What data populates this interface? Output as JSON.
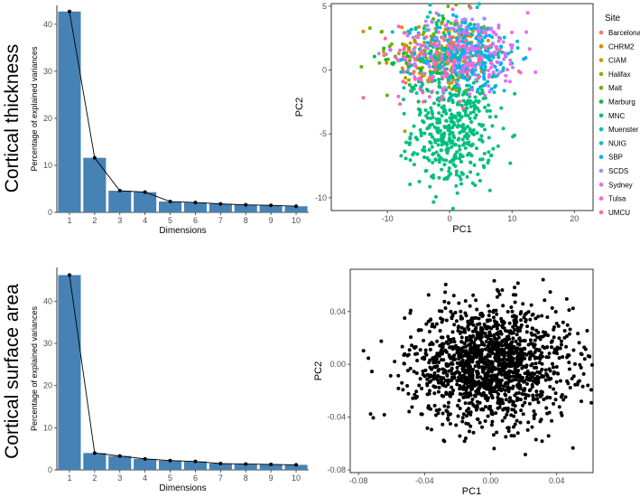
{
  "row_titles": [
    "Cortical thickness",
    "Cortical surface area"
  ],
  "legend": {
    "title": "Site",
    "items": [
      {
        "label": "Barcelona",
        "color": "#F8766D"
      },
      {
        "label": "CHRM2",
        "color": "#E58700"
      },
      {
        "label": "CIAM",
        "color": "#C99800"
      },
      {
        "label": "Halifax",
        "color": "#A3A500"
      },
      {
        "label": "Malt",
        "color": "#6BB100"
      },
      {
        "label": "Marburg",
        "color": "#00BA38"
      },
      {
        "label": "MNC",
        "color": "#00BF7D"
      },
      {
        "label": "Muenster",
        "color": "#00C0AF"
      },
      {
        "label": "NUIG",
        "color": "#00BCD8"
      },
      {
        "label": "SBP",
        "color": "#00B0F6"
      },
      {
        "label": "SCDS",
        "color": "#B983FF"
      },
      {
        "label": "Sydney",
        "color": "#E76BF3"
      },
      {
        "label": "Tulsa",
        "color": "#FD61D1"
      },
      {
        "label": "UMCU",
        "color": "#FF67A4"
      }
    ]
  },
  "chart_data": [
    {
      "type": "bar",
      "categories": [
        "1",
        "2",
        "3",
        "4",
        "5",
        "6",
        "7",
        "8",
        "9",
        "10"
      ],
      "values": [
        42.7,
        11.6,
        4.6,
        4.3,
        2.3,
        2.1,
        1.8,
        1.6,
        1.5,
        1.3
      ],
      "xlabel": "Dimensions",
      "ylabel": "Percentage of explained variances",
      "ylim": [
        0,
        44
      ],
      "yticks": [
        0,
        10,
        20,
        30,
        40
      ],
      "bar_color": "#4682B4",
      "line": true
    },
    {
      "type": "scatter",
      "xlabel": "PC1",
      "ylabel": "PC2",
      "xlim": [
        -19,
        23
      ],
      "ylim": [
        -11,
        5.2
      ],
      "xticks": [
        -10,
        0,
        10,
        20
      ],
      "yticks": [
        -10,
        -5,
        0,
        5
      ],
      "series": [
        {
          "name": "Barcelona",
          "color": "#F8766D",
          "n": 50,
          "cx": 0,
          "cy": 1,
          "sx": 4,
          "sy": 1.5
        },
        {
          "name": "CHRM2",
          "color": "#E58700",
          "n": 60,
          "cx": -1,
          "cy": 1.2,
          "sx": 5,
          "sy": 1.6
        },
        {
          "name": "CIAM",
          "color": "#C99800",
          "n": 40,
          "cx": -2,
          "cy": 1,
          "sx": 4,
          "sy": 1.5
        },
        {
          "name": "Halifax",
          "color": "#A3A500",
          "n": 50,
          "cx": -1,
          "cy": 1.5,
          "sx": 4,
          "sy": 1.5
        },
        {
          "name": "Malt",
          "color": "#6BB100",
          "n": 60,
          "cx": -3,
          "cy": 1.5,
          "sx": 4.5,
          "sy": 1.5
        },
        {
          "name": "Marburg",
          "color": "#00BA38",
          "n": 60,
          "cx": -2,
          "cy": 1,
          "sx": 4,
          "sy": 1.5
        },
        {
          "name": "MNC",
          "color": "#00BF7D",
          "n": 420,
          "cx": 0.5,
          "cy": -4.8,
          "sx": 3.3,
          "sy": 2.2
        },
        {
          "name": "Muenster",
          "color": "#00C0AF",
          "n": 120,
          "cx": 1,
          "cy": 1.5,
          "sx": 4,
          "sy": 1.5
        },
        {
          "name": "NUIG",
          "color": "#00BCD8",
          "n": 50,
          "cx": 2,
          "cy": 1.3,
          "sx": 4,
          "sy": 1.5
        },
        {
          "name": "SBP",
          "color": "#00B0F6",
          "n": 150,
          "cx": 3,
          "cy": 1.2,
          "sx": 4,
          "sy": 1.5
        },
        {
          "name": "SCDS",
          "color": "#B983FF",
          "n": 80,
          "cx": 2,
          "cy": 1.5,
          "sx": 5,
          "sy": 1.5
        },
        {
          "name": "Sydney",
          "color": "#E76BF3",
          "n": 80,
          "cx": 4,
          "cy": 1.5,
          "sx": 6,
          "sy": 1.5
        },
        {
          "name": "Tulsa",
          "color": "#FD61D1",
          "n": 40,
          "cx": 0,
          "cy": 1,
          "sx": 4,
          "sy": 1.5
        },
        {
          "name": "UMCU",
          "color": "#FF67A4",
          "n": 50,
          "cx": -1,
          "cy": 1,
          "sx": 4,
          "sy": 1.5
        }
      ]
    },
    {
      "type": "bar",
      "categories": [
        "1",
        "2",
        "3",
        "4",
        "5",
        "6",
        "7",
        "8",
        "9",
        "10"
      ],
      "values": [
        46.2,
        4.0,
        3.3,
        2.6,
        2.2,
        2.0,
        1.5,
        1.4,
        1.3,
        1.2
      ],
      "xlabel": "Dimensions",
      "ylabel": "Percentage of explained variances",
      "ylim": [
        0,
        48
      ],
      "yticks": [
        0,
        10,
        20,
        30,
        40
      ],
      "bar_color": "#4682B4",
      "line": true
    },
    {
      "type": "scatter",
      "xlabel": "PC1",
      "ylabel": "PC2",
      "xlim": [
        -0.085,
        0.062
      ],
      "ylim": [
        -0.082,
        0.072
      ],
      "xticks": [
        -0.08,
        -0.04,
        0.0,
        0.04
      ],
      "yticks": [
        -0.08,
        -0.04,
        0.0,
        0.04
      ],
      "xtick_labels": [
        "-0.08",
        "-0.04",
        "0.00",
        "0.04"
      ],
      "ytick_labels": [
        "-0.08",
        "-0.04",
        "0.00",
        "0.04"
      ],
      "series": [
        {
          "color": "#000000",
          "n": 1500,
          "cx": 0.0,
          "cy": 0.0,
          "sx": 0.024,
          "sy": 0.022
        }
      ]
    }
  ]
}
